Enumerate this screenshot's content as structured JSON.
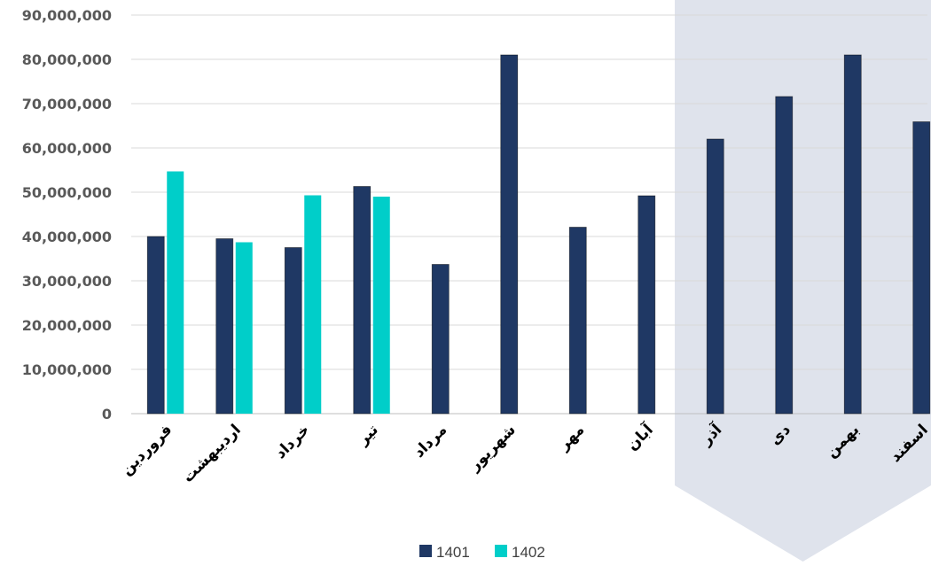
{
  "chart_data": {
    "type": "bar",
    "categories": [
      "فروردین",
      "اردیبهشت",
      "خرداد",
      "تیر",
      "مرداد",
      "شهریور",
      "مهر",
      "آبان",
      "آذر",
      "دی",
      "بهمن",
      "اسفند"
    ],
    "series": [
      {
        "name": "1401",
        "color": "#1f3864",
        "values": [
          40000000,
          39500000,
          37500000,
          51300000,
          33700000,
          81000000,
          42100000,
          49200000,
          62000000,
          71600000,
          81000000,
          65900000
        ]
      },
      {
        "name": "1402",
        "color": "#00cec9",
        "values": [
          54700000,
          38700000,
          49300000,
          49000000,
          null,
          null,
          null,
          null,
          null,
          null,
          null,
          null
        ]
      }
    ],
    "ylim": [
      0,
      90000000
    ],
    "yticks": [
      "0",
      "10,000,000",
      "20,000,000",
      "30,000,000",
      "40,000,000",
      "50,000,000",
      "60,000,000",
      "70,000,000",
      "80,000,000",
      "90,000,000"
    ],
    "grid": true,
    "legend_position": "bottom",
    "highlight": {
      "from_category": "آذر",
      "to_category": "اسفند",
      "color": "#dfe3ec"
    }
  }
}
